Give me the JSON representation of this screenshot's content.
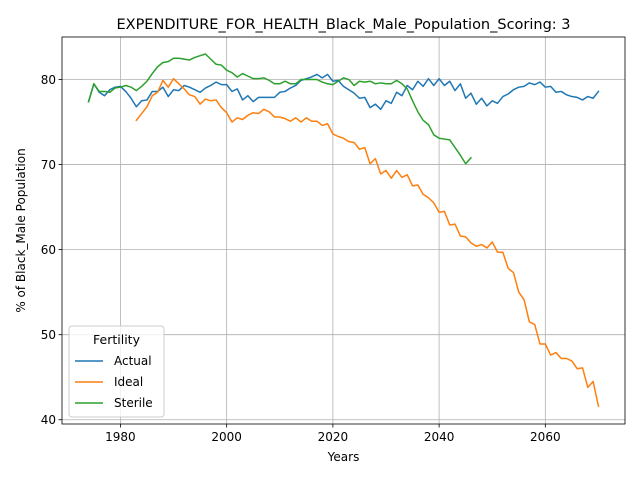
{
  "chart_data": {
    "type": "line",
    "title": "EXPENDITURE_FOR_HEALTH_Black_Male_Population_Scoring: 3",
    "xlabel": "Years",
    "ylabel": "% of Black_Male Population",
    "xlim": [
      1969,
      2075
    ],
    "ylim": [
      39.5,
      85
    ],
    "xticks": [
      1980,
      2000,
      2020,
      2040,
      2060
    ],
    "yticks": [
      40,
      50,
      60,
      70,
      80
    ],
    "grid": true,
    "legend": {
      "title": "Fertility",
      "placement": "lower-left"
    },
    "series": [
      {
        "name": "Actual",
        "color": "#1f77b4",
        "x": [
          1974,
          1975,
          1976,
          1977,
          1978,
          1979,
          1980,
          1981,
          1982,
          1983,
          1984,
          1985,
          1986,
          1987,
          1988,
          1989,
          1990,
          1991,
          1992,
          1993,
          1994,
          1995,
          1996,
          1997,
          1998,
          1999,
          2000,
          2001,
          2002,
          2003,
          2004,
          2005,
          2006,
          2007,
          2008,
          2009,
          2010,
          2011,
          2012,
          2013,
          2014,
          2015,
          2016,
          2017,
          2018,
          2019,
          2020,
          2021,
          2022,
          2023,
          2024,
          2025,
          2026,
          2027,
          2028,
          2029,
          2030,
          2031,
          2032,
          2033,
          2034,
          2035,
          2036,
          2037,
          2038,
          2039,
          2040,
          2041,
          2042,
          2043,
          2044,
          2045,
          2046,
          2047,
          2048,
          2049,
          2050,
          2051,
          2052,
          2053,
          2054,
          2055,
          2056,
          2057,
          2058,
          2059,
          2060,
          2061,
          2062,
          2063,
          2064,
          2065,
          2066,
          2067,
          2068,
          2069,
          2070
        ],
        "y": [
          77.4,
          79.5,
          78.5,
          78.1,
          78.8,
          79.1,
          79.2,
          78.6,
          77.8,
          76.8,
          77.5,
          77.6,
          78.6,
          78.6,
          79.1,
          78.0,
          78.8,
          78.7,
          79.3,
          79.1,
          78.8,
          78.5,
          79.0,
          79.3,
          79.7,
          79.4,
          79.4,
          78.6,
          78.9,
          77.6,
          78.1,
          77.4,
          77.9,
          77.9,
          77.9,
          77.9,
          78.5,
          78.6,
          79.0,
          79.3,
          79.9,
          80.1,
          80.3,
          80.6,
          80.2,
          80.6,
          79.8,
          79.9,
          79.2,
          78.8,
          78.4,
          77.8,
          77.9,
          76.7,
          77.1,
          76.5,
          77.5,
          77.2,
          78.5,
          78.1,
          79.3,
          78.8,
          79.8,
          79.2,
          80.1,
          79.3,
          80.1,
          79.3,
          79.8,
          78.7,
          79.5,
          77.8,
          78.4,
          77.1,
          77.8,
          76.9,
          77.5,
          77.2,
          78.0,
          78.3,
          78.8,
          79.1,
          79.2,
          79.6,
          79.4,
          79.7,
          79.1,
          79.2,
          78.5,
          78.6,
          78.2,
          78.0,
          77.9,
          77.6,
          78.0,
          77.8,
          78.6
        ]
      },
      {
        "name": "Ideal",
        "color": "#ff7f0e",
        "x": [
          1983,
          1984,
          1985,
          1986,
          1987,
          1988,
          1989,
          1990,
          1991,
          1992,
          1993,
          1994,
          1995,
          1996,
          1997,
          1998,
          1999,
          2000,
          2001,
          2002,
          2003,
          2004,
          2005,
          2006,
          2007,
          2008,
          2009,
          2010,
          2011,
          2012,
          2013,
          2014,
          2015,
          2016,
          2017,
          2018,
          2019,
          2020,
          2021,
          2022,
          2023,
          2024,
          2025,
          2026,
          2027,
          2028,
          2029,
          2030,
          2031,
          2032,
          2033,
          2034,
          2035,
          2036,
          2037,
          2038,
          2039,
          2040,
          2041,
          2042,
          2043,
          2044,
          2045,
          2046,
          2047,
          2048,
          2049,
          2050,
          2051,
          2052,
          2053,
          2054,
          2055,
          2056,
          2057,
          2058,
          2059,
          2060,
          2061,
          2062,
          2063,
          2064,
          2065,
          2066,
          2067,
          2068,
          2069,
          2070
        ],
        "y": [
          75.2,
          76.0,
          76.8,
          78.1,
          78.5,
          79.9,
          79.1,
          80.1,
          79.5,
          78.9,
          78.2,
          78.0,
          77.1,
          77.7,
          77.5,
          77.6,
          76.7,
          76.1,
          75.0,
          75.5,
          75.3,
          75.8,
          76.1,
          76.0,
          76.5,
          76.2,
          75.6,
          75.6,
          75.4,
          75.1,
          75.5,
          75.0,
          75.5,
          75.1,
          75.1,
          74.6,
          74.8,
          73.6,
          73.3,
          73.1,
          72.7,
          72.6,
          71.8,
          72.0,
          70.1,
          70.7,
          68.9,
          69.3,
          68.4,
          69.3,
          68.5,
          68.8,
          67.5,
          67.6,
          66.5,
          66.1,
          65.5,
          64.4,
          64.5,
          62.9,
          63.0,
          61.6,
          61.5,
          60.8,
          60.4,
          60.6,
          60.2,
          60.9,
          59.7,
          59.7,
          57.8,
          57.3,
          55.0,
          54.1,
          51.5,
          51.2,
          48.9,
          48.9,
          47.6,
          47.9,
          47.2,
          47.2,
          46.9,
          46.0,
          46.1,
          43.8,
          44.5,
          41.6
        ]
      },
      {
        "name": "Sterile",
        "color": "#2ca02c",
        "x": [
          1974,
          1975,
          1976,
          1977,
          1978,
          1979,
          1980,
          1981,
          1982,
          1983,
          1984,
          1985,
          1986,
          1987,
          1988,
          1989,
          1990,
          1991,
          1992,
          1993,
          1994,
          1995,
          1996,
          1997,
          1998,
          1999,
          2000,
          2001,
          2002,
          2003,
          2004,
          2005,
          2006,
          2007,
          2008,
          2009,
          2010,
          2011,
          2012,
          2013,
          2014,
          2015,
          2016,
          2017,
          2018,
          2019,
          2020,
          2021,
          2022,
          2023,
          2024,
          2025,
          2026,
          2027,
          2028,
          2029,
          2030,
          2031,
          2032,
          2033,
          2034,
          2035,
          2036,
          2037,
          2038,
          2039,
          2040,
          2041,
          2042,
          2043,
          2044,
          2045,
          2046
        ],
        "y": [
          77.4,
          79.5,
          78.6,
          78.6,
          78.5,
          79.0,
          79.1,
          79.3,
          79.1,
          78.7,
          79.2,
          79.8,
          80.7,
          81.5,
          82.0,
          82.1,
          82.5,
          82.5,
          82.4,
          82.3,
          82.6,
          82.8,
          83.0,
          82.4,
          81.8,
          81.7,
          81.1,
          80.8,
          80.3,
          80.7,
          80.4,
          80.1,
          80.1,
          80.2,
          79.9,
          79.5,
          79.5,
          79.8,
          79.5,
          79.5,
          80.0,
          80.0,
          80.0,
          80.0,
          79.7,
          79.5,
          79.4,
          79.8,
          80.2,
          80.0,
          79.3,
          79.8,
          79.7,
          79.8,
          79.5,
          79.6,
          79.5,
          79.5,
          79.9,
          79.5,
          78.9,
          77.5,
          76.2,
          75.2,
          74.7,
          73.5,
          73.1,
          73.0,
          72.9,
          72.0,
          71.1,
          70.1,
          70.8
        ]
      }
    ]
  }
}
